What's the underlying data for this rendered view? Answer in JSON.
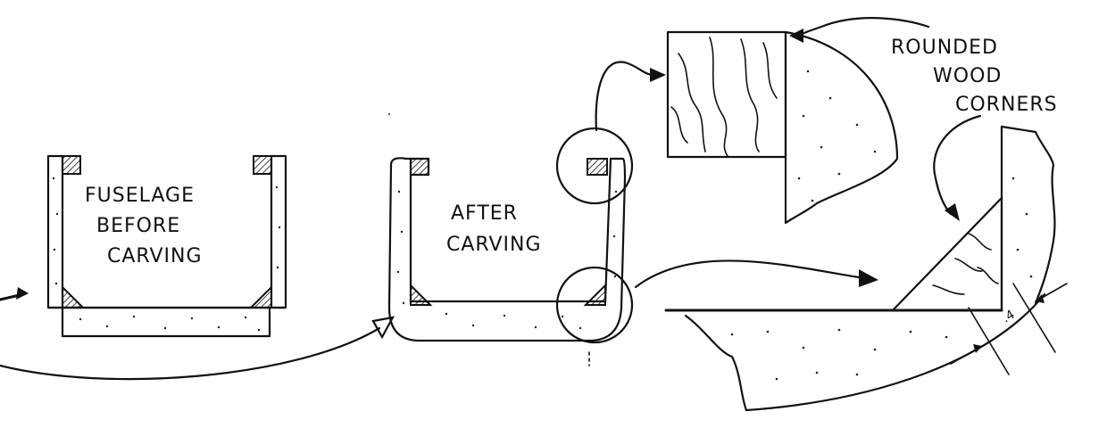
{
  "labels": {
    "before_line1": "FUSELAGE",
    "before_line2": "BEFORE",
    "before_line3": "CARVING",
    "after_line1": "AFTER",
    "after_line2": "CARVING",
    "corners_line1": "ROUNDED",
    "corners_line2": "WOOD",
    "corners_line3": "CORNERS",
    "dimension": ".4"
  },
  "colors": {
    "ink": "#111111",
    "paper": "#ffffff"
  }
}
